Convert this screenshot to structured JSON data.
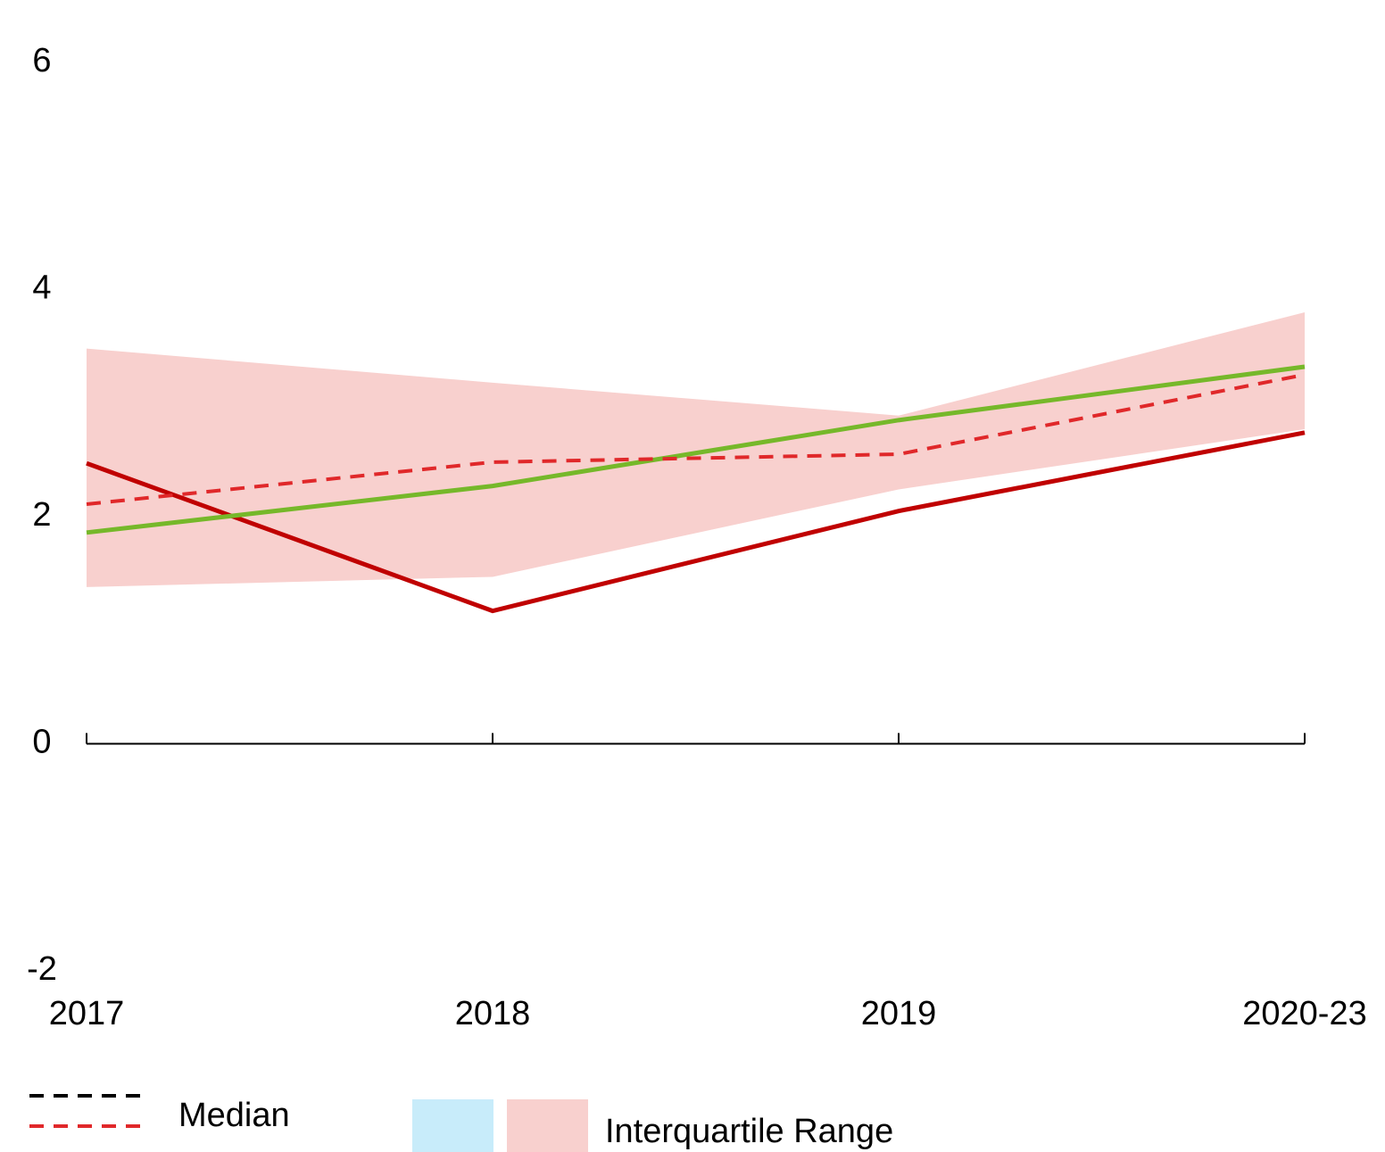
{
  "chart_data": {
    "type": "line",
    "categories": [
      "2017",
      "2018",
      "2019",
      "2020-23"
    ],
    "ylim": [
      -2,
      6
    ],
    "yticks": [
      -2,
      0,
      2,
      4,
      6
    ],
    "series": [
      {
        "color": "#c00000",
        "dashed": false,
        "values": [
          2.47,
          1.17,
          2.05,
          2.74
        ]
      },
      {
        "color": "#76b82a",
        "dashed": false,
        "values": [
          1.86,
          2.27,
          2.85,
          3.32
        ]
      },
      {
        "color": "#e0282a",
        "dashed": true,
        "values": [
          2.11,
          2.48,
          2.55,
          3.25
        ]
      }
    ],
    "band": {
      "color": "#f8d0ce",
      "upper": [
        3.48,
        3.18,
        2.89,
        3.8
      ],
      "lower": [
        1.38,
        1.47,
        2.24,
        2.77
      ]
    },
    "legend": [
      {
        "label": "Median",
        "kind": "dash",
        "colors": [
          "#000000",
          "#e0282a"
        ]
      },
      {
        "label": "Interquartile Range",
        "kind": "swatch",
        "colors": [
          "#c8ecfa",
          "#f8d0ce"
        ]
      }
    ]
  }
}
